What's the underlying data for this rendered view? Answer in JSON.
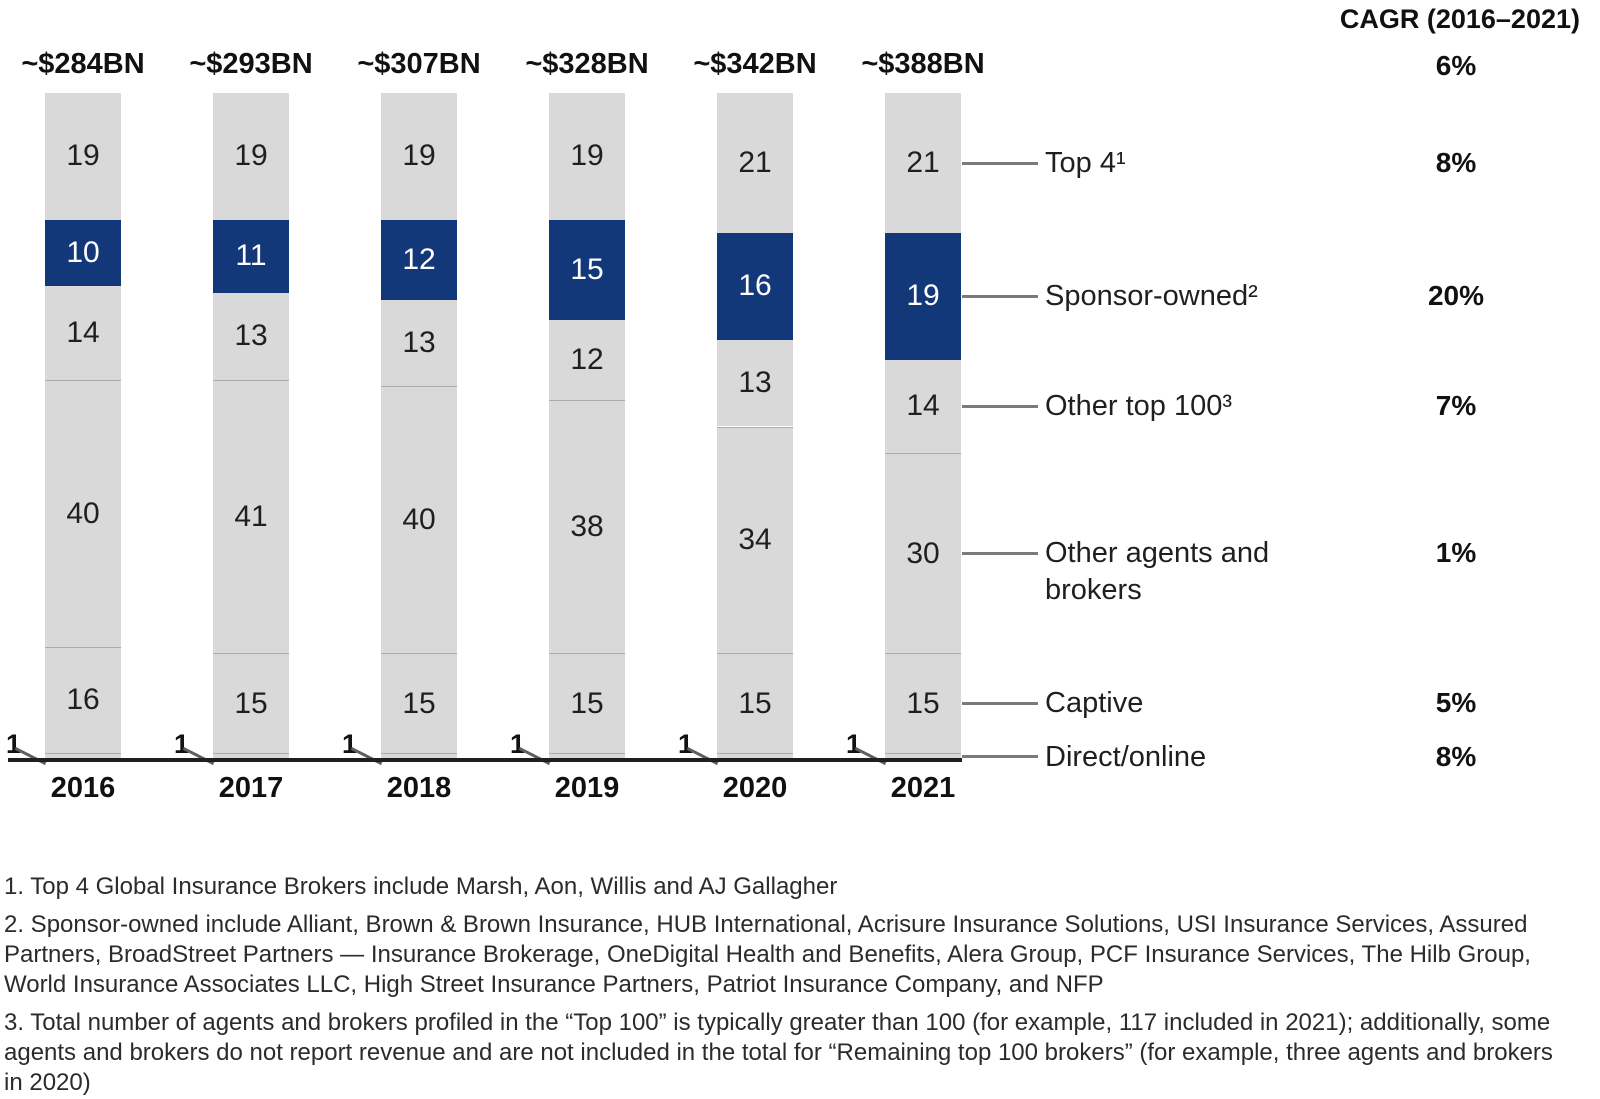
{
  "cagr_panel": {
    "header": "CAGR (2016–2021)",
    "total": "6%"
  },
  "chart_data": {
    "type": "bar",
    "stacked": true,
    "units": "percent share of total market revenue",
    "categories": [
      "2016",
      "2017",
      "2018",
      "2019",
      "2020",
      "2021"
    ],
    "bar_totals": [
      "~$284BN",
      "~$293BN",
      "~$307BN",
      "~$328BN",
      "~$342BN",
      "~$388BN"
    ],
    "series": [
      {
        "name": "Top 4¹",
        "values": [
          19,
          19,
          19,
          19,
          21,
          21
        ],
        "cagr": "8%",
        "color": "gray"
      },
      {
        "name": "Sponsor-owned²",
        "values": [
          10,
          11,
          12,
          15,
          16,
          19
        ],
        "cagr": "20%",
        "color": "blue"
      },
      {
        "name": "Other top 100³",
        "values": [
          14,
          13,
          13,
          12,
          13,
          14
        ],
        "cagr": "7%",
        "color": "gray"
      },
      {
        "name": "Other agents and brokers",
        "values": [
          40,
          41,
          40,
          38,
          34,
          30
        ],
        "cagr": "1%",
        "color": "gray"
      },
      {
        "name": "Captive",
        "values": [
          16,
          15,
          15,
          15,
          15,
          15
        ],
        "cagr": "5%",
        "color": "gray"
      },
      {
        "name": "Direct/online",
        "values": [
          1,
          1,
          1,
          1,
          1,
          1
        ],
        "cagr": "8%",
        "color": "gray"
      }
    ],
    "total_cagr": "6%",
    "legend_position": "right",
    "grid": false,
    "palette": {
      "blue": "#13387a",
      "gray": "#d9d9d9"
    }
  },
  "footnotes": [
    "1. Top 4 Global Insurance Brokers include Marsh, Aon, Willis and AJ Gallagher",
    "2. Sponsor-owned include Alliant, Brown & Brown Insurance, HUB International, Acrisure Insurance Solutions, USI Insurance Services, Assured Partners, BroadStreet Partners — Insurance Brokerage, OneDigital Health and Benefits, Alera Group, PCF Insurance Services, The Hilb Group, World Insurance Associates LLC, High Street Insurance Partners, Patriot Insurance Company, and NFP",
    "3. Total number of agents and brokers profiled in the “Top 100” is typically greater than 100 (for example, 117 included in 2021); additionally, some agents and brokers do not report revenue and are not included in the total for “Remaining top 100 brokers” (for example, three agents and brokers in 2020)"
  ]
}
